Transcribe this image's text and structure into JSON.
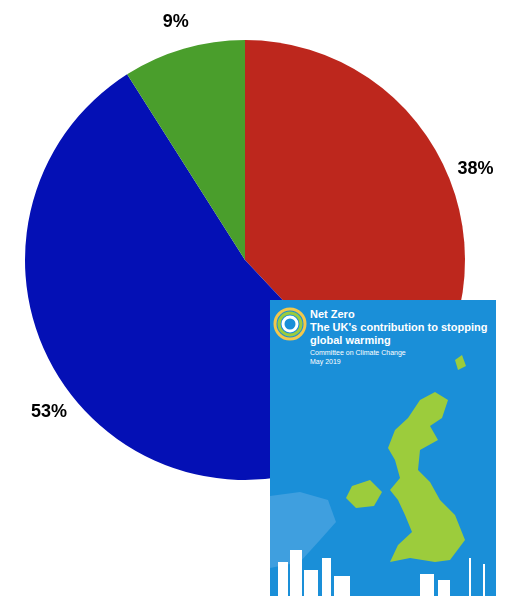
{
  "chart_data": {
    "type": "pie",
    "values": [
      38,
      53,
      9
    ],
    "value_labels": [
      "38%",
      "53%",
      "9%"
    ],
    "colors": [
      "#bd271d",
      "#0410b5",
      "#4a9e2c"
    ],
    "data_labels": true
  },
  "inset": {
    "title": "Net Zero",
    "subtitle": "The UK's contribution to stopping global warming",
    "author": "Committee on Climate Change",
    "date": "May 2019"
  }
}
